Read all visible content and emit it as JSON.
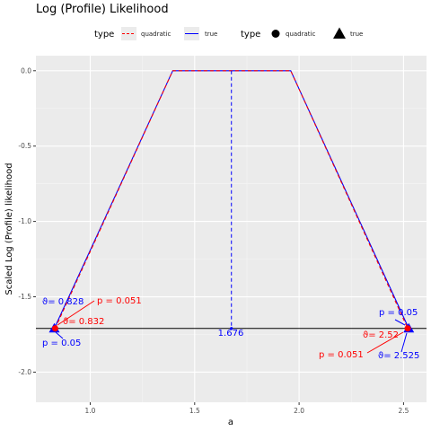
{
  "chart_data": {
    "type": "line",
    "title": "Log (Profile) Likelihood",
    "xlabel": "a",
    "ylabel": "Scaled Log (Profile) likelihood",
    "xlim": [
      0.74,
      2.61
    ],
    "ylim": [
      -2.2,
      0.1
    ],
    "x_ticks": [
      1.0,
      1.5,
      2.0,
      2.5
    ],
    "x_tick_labels": [
      "1.0",
      "1.5",
      "2.0",
      "2.5"
    ],
    "y_ticks": [
      0.0,
      -0.5,
      -1.0,
      -1.5,
      -2.0
    ],
    "y_tick_labels": [
      "0.0",
      "-0.5",
      "-1.0",
      "-1.5",
      "-2.0"
    ],
    "grid": true,
    "background": "#ebebeb",
    "legend": {
      "position": "top",
      "line_title": "type",
      "line_items": [
        {
          "label": "quadratic",
          "color": "#ff0000",
          "dash": true
        },
        {
          "label": "true",
          "color": "#0000ff",
          "dash": false
        }
      ],
      "shape_title": "type",
      "shape_items": [
        {
          "label": "quadratic",
          "shape": "circle"
        },
        {
          "label": "true",
          "shape": "triangle"
        }
      ]
    },
    "series": [
      {
        "name": "true",
        "color": "#0000ff",
        "dash": false,
        "x": [
          0.828,
          1.395,
          1.96,
          2.525
        ],
        "y": [
          -1.71,
          0.0,
          0.0,
          -1.71
        ]
      },
      {
        "name": "quadratic",
        "color": "#ff0000",
        "dash": true,
        "x": [
          0.832,
          1.395,
          1.96,
          2.52
        ],
        "y": [
          -1.71,
          0.0,
          0.0,
          -1.71
        ]
      }
    ],
    "hline": -1.71,
    "mle": {
      "x": 1.676,
      "label": "1.676",
      "color": "#0000ff"
    },
    "points": [
      {
        "type": "true",
        "x": 0.828,
        "y": -1.71,
        "color": "#0000ff"
      },
      {
        "type": "true",
        "x": 2.525,
        "y": -1.71,
        "color": "#0000ff"
      },
      {
        "type": "quadratic",
        "x": 0.832,
        "y": -1.71,
        "color": "#ff0000"
      },
      {
        "type": "quadratic",
        "x": 2.52,
        "y": -1.71,
        "color": "#ff0000"
      }
    ],
    "annotations": [
      {
        "text": "ϑ= 0.828",
        "color": "#0000ff"
      },
      {
        "text": "p = 0.051",
        "color": "#ff0000"
      },
      {
        "text": "ϑ= 0.832",
        "color": "#ff0000"
      },
      {
        "text": "p = 0.05",
        "color": "#0000ff"
      },
      {
        "text": "p = 0.05",
        "color": "#0000ff"
      },
      {
        "text": "ϑ= 2.52",
        "color": "#ff0000"
      },
      {
        "text": "p = 0.051",
        "color": "#ff0000"
      },
      {
        "text": "ϑ= 2.525",
        "color": "#0000ff"
      }
    ]
  }
}
